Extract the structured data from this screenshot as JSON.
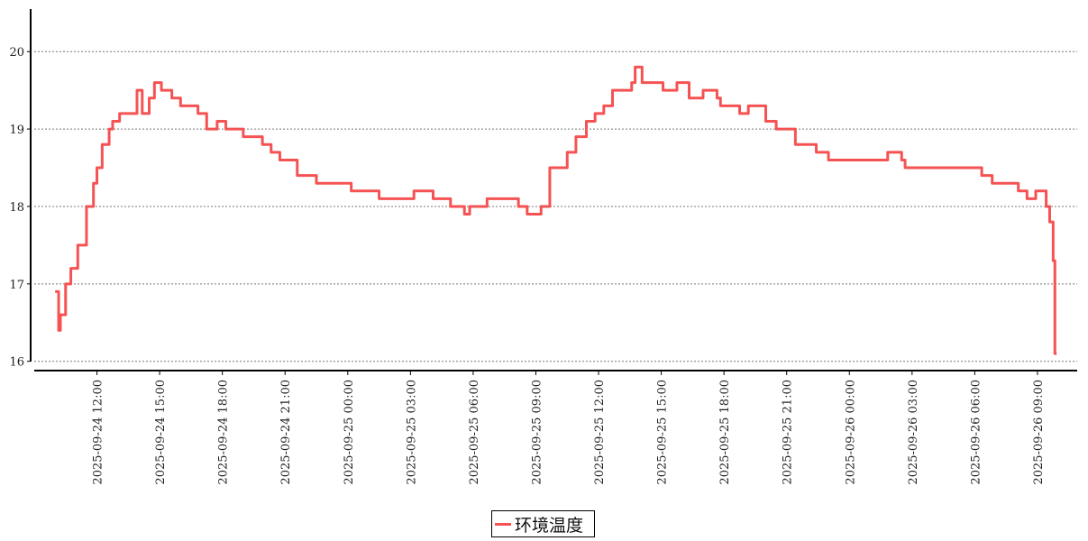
{
  "chart_data": {
    "type": "line",
    "title": "",
    "xlabel": "",
    "ylabel": "",
    "xlim": [
      "2025-09-24 09:00",
      "2025-09-26 10:54"
    ],
    "ylim": [
      15.88,
      20.55
    ],
    "grid": "horizontal dotted",
    "legend_placement": "bottom-center",
    "yticks": [
      "16",
      "17",
      "18",
      "19",
      "20"
    ],
    "xticks": [
      "2025-09-24 12:00",
      "2025-09-24 15:00",
      "2025-09-24 18:00",
      "2025-09-24 21:00",
      "2025-09-25 00:00",
      "2025-09-25 03:00",
      "2025-09-25 06:00",
      "2025-09-25 09:00",
      "2025-09-25 12:00",
      "2025-09-25 15:00",
      "2025-09-25 18:00",
      "2025-09-25 21:00",
      "2025-09-26 00:00",
      "2025-09-26 03:00",
      "2025-09-26 06:00",
      "2025-09-26 09:00"
    ],
    "series": [
      {
        "name": "环境温度",
        "color": "#f55353",
        "x": [
          "2025-09-24 10:00",
          "2025-09-24 10:10",
          "2025-09-24 10:15",
          "2025-09-24 10:30",
          "2025-09-24 10:45",
          "2025-09-24 11:05",
          "2025-09-24 11:30",
          "2025-09-24 11:50",
          "2025-09-24 12:00",
          "2025-09-24 12:15",
          "2025-09-24 12:35",
          "2025-09-24 12:45",
          "2025-09-24 13:05",
          "2025-09-24 13:40",
          "2025-09-24 13:55",
          "2025-09-24 14:10",
          "2025-09-24 14:30",
          "2025-09-24 14:45",
          "2025-09-24 15:05",
          "2025-09-24 15:35",
          "2025-09-24 16:00",
          "2025-09-24 16:25",
          "2025-09-24 16:50",
          "2025-09-24 17:15",
          "2025-09-24 17:45",
          "2025-09-24 18:10",
          "2025-09-24 18:50",
          "2025-09-24 19:00",
          "2025-09-24 19:40",
          "2025-09-24 19:55",
          "2025-09-24 20:20",
          "2025-09-24 20:45",
          "2025-09-24 21:10",
          "2025-09-24 21:35",
          "2025-09-24 22:05",
          "2025-09-24 22:30",
          "2025-09-24 23:20",
          "2025-09-25 00:10",
          "2025-09-25 00:40",
          "2025-09-25 01:30",
          "2025-09-25 02:20",
          "2025-09-25 03:10",
          "2025-09-25 04:05",
          "2025-09-25 04:55",
          "2025-09-25 05:35",
          "2025-09-25 05:50",
          "2025-09-25 06:40",
          "2025-09-25 07:30",
          "2025-09-25 08:10",
          "2025-09-25 08:35",
          "2025-09-25 09:15",
          "2025-09-25 09:40",
          "2025-09-25 10:05",
          "2025-09-25 10:30",
          "2025-09-25 10:55",
          "2025-09-25 11:25",
          "2025-09-25 11:50",
          "2025-09-25 12:15",
          "2025-09-25 12:40",
          "2025-09-25 13:05",
          "2025-09-25 13:35",
          "2025-09-25 13:45",
          "2025-09-25 14:05",
          "2025-09-25 14:40",
          "2025-09-25 15:05",
          "2025-09-25 15:45",
          "2025-09-25 16:20",
          "2025-09-25 17:00",
          "2025-09-25 17:40",
          "2025-09-25 17:50",
          "2025-09-25 18:30",
          "2025-09-25 18:45",
          "2025-09-25 19:10",
          "2025-09-25 19:35",
          "2025-09-25 20:00",
          "2025-09-25 20:30",
          "2025-09-25 21:05",
          "2025-09-25 21:25",
          "2025-09-25 21:55",
          "2025-09-25 22:25",
          "2025-09-25 23:00",
          "2025-09-25 23:55",
          "2025-09-26 00:45",
          "2025-09-26 01:50",
          "2025-09-26 02:30",
          "2025-09-26 02:40",
          "2025-09-26 04:15",
          "2025-09-26 05:30",
          "2025-09-26 06:20",
          "2025-09-26 06:50",
          "2025-09-26 07:40",
          "2025-09-26 08:05",
          "2025-09-26 08:30",
          "2025-09-26 08:55",
          "2025-09-26 09:25",
          "2025-09-26 09:35",
          "2025-09-26 09:45",
          "2025-09-26 09:50",
          "2025-09-26 09:55"
        ],
        "values": [
          16.9,
          16.4,
          16.6,
          17.0,
          17.2,
          17.5,
          18.0,
          18.3,
          18.5,
          18.8,
          19.0,
          19.1,
          19.2,
          19.2,
          19.5,
          19.2,
          19.4,
          19.6,
          19.5,
          19.4,
          19.3,
          19.3,
          19.2,
          19.0,
          19.1,
          19.0,
          19.0,
          18.9,
          18.9,
          18.8,
          18.7,
          18.6,
          18.6,
          18.4,
          18.4,
          18.3,
          18.3,
          18.2,
          18.2,
          18.1,
          18.1,
          18.2,
          18.1,
          18.0,
          17.9,
          18.0,
          18.1,
          18.1,
          18.0,
          17.9,
          18.0,
          18.5,
          18.5,
          18.7,
          18.9,
          19.1,
          19.2,
          19.3,
          19.5,
          19.5,
          19.6,
          19.8,
          19.6,
          19.6,
          19.5,
          19.6,
          19.4,
          19.5,
          19.4,
          19.3,
          19.3,
          19.2,
          19.3,
          19.3,
          19.1,
          19.0,
          19.0,
          18.8,
          18.8,
          18.7,
          18.6,
          18.6,
          18.6,
          18.7,
          18.6,
          18.5,
          18.5,
          18.5,
          18.4,
          18.3,
          18.3,
          18.2,
          18.1,
          18.2,
          18.0,
          17.8,
          17.3,
          16.1,
          16.1
        ]
      }
    ]
  }
}
